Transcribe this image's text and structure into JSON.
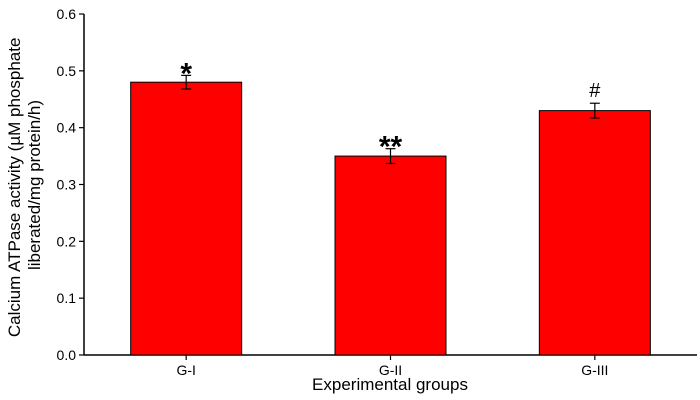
{
  "colors": {
    "bar_fill": "#ff0000",
    "bar_stroke": "#000000",
    "axis": "#000000"
  },
  "chart_data": {
    "type": "bar",
    "title": "",
    "xlabel": "Experimental groups",
    "ylabel_lines": [
      "Calcium ATPase activity (µM phosphate",
      "liberated/mg protein/h)"
    ],
    "categories": [
      "G-I",
      "G-II",
      "G-III"
    ],
    "values": [
      0.48,
      0.35,
      0.43
    ],
    "errors": [
      0.012,
      0.013,
      0.013
    ],
    "annotations": [
      "*",
      "**",
      "#"
    ],
    "ylim": [
      0,
      0.6
    ],
    "yticks": [
      0.0,
      0.1,
      0.2,
      0.3,
      0.4,
      0.5,
      0.6
    ],
    "ytick_labels": [
      "0.0",
      "0.1",
      "0.2",
      "0.3",
      "0.4",
      "0.5",
      "0.6"
    ],
    "grid": false,
    "legend": "none"
  }
}
